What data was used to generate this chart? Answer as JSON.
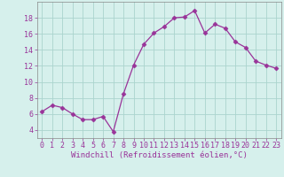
{
  "x": [
    0,
    1,
    2,
    3,
    4,
    5,
    6,
    7,
    8,
    9,
    10,
    11,
    12,
    13,
    14,
    15,
    16,
    17,
    18,
    19,
    20,
    21,
    22,
    23
  ],
  "y": [
    6.3,
    7.1,
    6.8,
    6.0,
    5.3,
    5.3,
    5.7,
    3.8,
    8.5,
    12.1,
    14.7,
    16.1,
    16.9,
    18.0,
    18.1,
    18.9,
    16.1,
    17.2,
    16.7,
    15.0,
    14.3,
    12.6,
    12.1,
    11.7
  ],
  "line_color": "#993399",
  "marker": "D",
  "marker_size": 2.5,
  "bg_color": "#d6f0ec",
  "grid_color": "#aad4ce",
  "xlabel": "Windchill (Refroidissement éolien,°C)",
  "xlabel_fontsize": 6.5,
  "tick_fontsize": 6.0,
  "tick_color": "#993399",
  "ylim": [
    3,
    20
  ],
  "xlim": [
    -0.5,
    23.5
  ],
  "yticks": [
    4,
    6,
    8,
    10,
    12,
    14,
    16,
    18
  ],
  "xticks": [
    0,
    1,
    2,
    3,
    4,
    5,
    6,
    7,
    8,
    9,
    10,
    11,
    12,
    13,
    14,
    15,
    16,
    17,
    18,
    19,
    20,
    21,
    22,
    23
  ]
}
